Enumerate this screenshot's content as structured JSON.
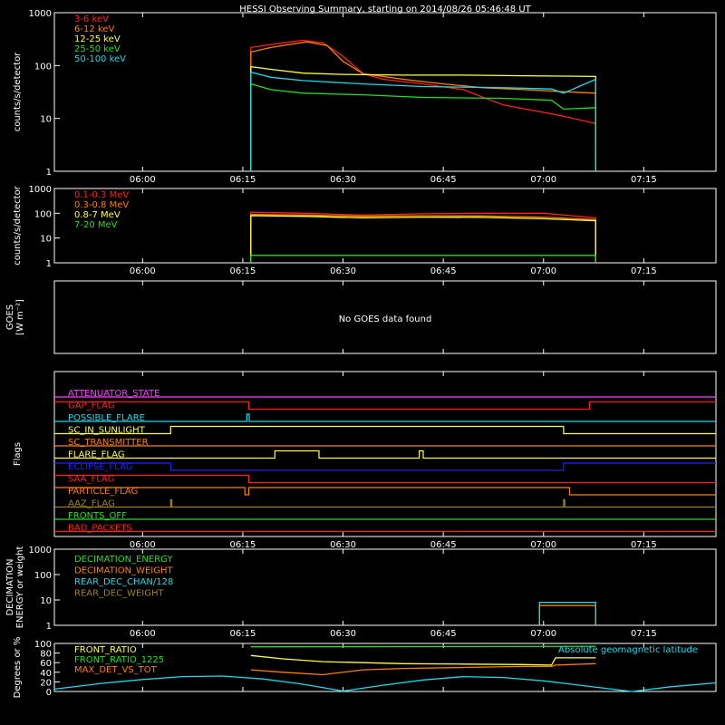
{
  "title": "HESSI Observing Summary, starting on 2014/08/26 05:46:48 UT",
  "time_ticks": [
    "06:00",
    "06:15",
    "06:30",
    "06:45",
    "07:00",
    "07:15"
  ],
  "colors": {
    "red": "#ff2020",
    "orange": "#ff7f00",
    "yellow": "#ffff40",
    "green": "#20e020",
    "cyan": "#20d8e8",
    "blue": "#2020ff",
    "magenta": "#ff40ff",
    "olive": "#a08020",
    "white": "#ffffff"
  },
  "chart_data": [
    {
      "type": "line",
      "name": "counts",
      "ylabel": "counts/s/detector",
      "yscale": "log",
      "ylim": [
        1,
        1000
      ],
      "yticks": [
        "1",
        "10",
        "100",
        "1000"
      ],
      "series": [
        {
          "name": "3-6 keV",
          "color": "red",
          "points": [
            [
              6.27,
              220
            ],
            [
              6.32,
              250
            ],
            [
              6.37,
              280
            ],
            [
              6.4,
              300
            ],
            [
              6.45,
              270
            ],
            [
              6.5,
              150
            ],
            [
              6.55,
              70
            ],
            [
              6.6,
              55
            ],
            [
              6.7,
              45
            ],
            [
              6.8,
              35
            ],
            [
              6.85,
              25
            ],
            [
              6.9,
              18
            ],
            [
              7.0,
              13
            ],
            [
              7.05,
              11
            ],
            [
              7.1,
              9
            ],
            [
              7.13,
              8
            ]
          ]
        },
        {
          "name": "6-12 keV",
          "color": "orange",
          "points": [
            [
              6.27,
              180
            ],
            [
              6.32,
              220
            ],
            [
              6.38,
              260
            ],
            [
              6.41,
              280
            ],
            [
              6.46,
              240
            ],
            [
              6.5,
              120
            ],
            [
              6.55,
              70
            ],
            [
              6.65,
              55
            ],
            [
              6.75,
              45
            ],
            [
              6.85,
              38
            ],
            [
              6.95,
              35
            ],
            [
              7.05,
              32
            ],
            [
              7.13,
              30
            ]
          ]
        },
        {
          "name": "12-25 keV",
          "color": "yellow",
          "points": [
            [
              6.27,
              95
            ],
            [
              6.32,
              85
            ],
            [
              6.4,
              72
            ],
            [
              6.5,
              68
            ],
            [
              6.65,
              66
            ],
            [
              6.8,
              66
            ],
            [
              6.95,
              64
            ],
            [
              7.05,
              63
            ],
            [
              7.13,
              62
            ]
          ]
        },
        {
          "name": "25-50 keV",
          "color": "green",
          "points": [
            [
              6.27,
              45
            ],
            [
              6.32,
              35
            ],
            [
              6.4,
              30
            ],
            [
              6.55,
              28
            ],
            [
              6.7,
              25
            ],
            [
              6.9,
              24
            ],
            [
              7.02,
              22
            ],
            [
              7.05,
              15
            ],
            [
              7.13,
              16
            ]
          ]
        },
        {
          "name": "50-100 keV",
          "color": "cyan",
          "points": [
            [
              6.27,
              75
            ],
            [
              6.32,
              60
            ],
            [
              6.4,
              52
            ],
            [
              6.55,
              45
            ],
            [
              6.7,
              40
            ],
            [
              6.9,
              38
            ],
            [
              7.02,
              36
            ],
            [
              7.05,
              30
            ],
            [
              7.13,
              55
            ]
          ]
        }
      ]
    },
    {
      "type": "line",
      "name": "counts-high",
      "ylabel": "counts/s/detector",
      "yscale": "log",
      "ylim": [
        1,
        1000
      ],
      "yticks": [
        "1",
        "10",
        "100",
        "1000"
      ],
      "series": [
        {
          "name": "0.1-0.3 MeV",
          "color": "red",
          "points": [
            [
              6.27,
              110
            ],
            [
              6.4,
              100
            ],
            [
              6.55,
              85
            ],
            [
              6.7,
              95
            ],
            [
              6.85,
              100
            ],
            [
              7.0,
              100
            ],
            [
              7.13,
              65
            ]
          ]
        },
        {
          "name": "0.3-0.8 MeV",
          "color": "orange",
          "points": [
            [
              6.27,
              90
            ],
            [
              6.4,
              85
            ],
            [
              6.55,
              75
            ],
            [
              6.7,
              80
            ],
            [
              6.85,
              78
            ],
            [
              7.0,
              70
            ],
            [
              7.13,
              55
            ]
          ]
        },
        {
          "name": "0.8-7 MeV",
          "color": "yellow",
          "points": [
            [
              6.27,
              80
            ],
            [
              6.4,
              75
            ],
            [
              6.55,
              65
            ],
            [
              6.7,
              70
            ],
            [
              6.85,
              68
            ],
            [
              7.0,
              60
            ],
            [
              7.13,
              50
            ]
          ]
        },
        {
          "name": "7-20 MeV",
          "color": "green",
          "points": [
            [
              6.27,
              2
            ],
            [
              7.13,
              2
            ]
          ]
        }
      ]
    },
    {
      "type": "line",
      "name": "goes",
      "ylabel": "GOES",
      "ylabel2": "[W m⁻²]",
      "message": "No GOES data found",
      "series": []
    },
    {
      "type": "line",
      "name": "flags",
      "ylabel": "Flags",
      "series": [
        {
          "name": "ATTENUATOR_STATE",
          "color": "magenta",
          "segments": [
            [
              5.78,
              7.43,
              0
            ]
          ]
        },
        {
          "name": "GAP_FLAG",
          "color": "red",
          "segments": [
            [
              5.78,
              6.265,
              1
            ],
            [
              6.265,
              7.115,
              0
            ],
            [
              7.115,
              7.43,
              1
            ]
          ]
        },
        {
          "name": "POSSIBLE_FLARE",
          "color": "cyan",
          "segments": [
            [
              5.78,
              6.26,
              0
            ],
            [
              6.26,
              6.266,
              1
            ],
            [
              6.266,
              7.43,
              0
            ]
          ]
        },
        {
          "name": "SC_IN_SUNLIGHT",
          "color": "yellow",
          "segments": [
            [
              5.78,
              6.07,
              0
            ],
            [
              6.07,
              7.05,
              1
            ],
            [
              7.05,
              7.43,
              0
            ]
          ]
        },
        {
          "name": "SC_TRANSMITTER",
          "color": "orange",
          "segments": [
            [
              5.78,
              7.43,
              0
            ]
          ]
        },
        {
          "name": "FLARE_FLAG",
          "color": "yellow",
          "segments": [
            [
              5.78,
              6.33,
              0
            ],
            [
              6.33,
              6.44,
              1
            ],
            [
              6.44,
              6.69,
              0
            ],
            [
              6.69,
              6.7,
              1
            ],
            [
              6.7,
              7.43,
              0
            ]
          ]
        },
        {
          "name": "ECLIPSE_FLAG",
          "color": "blue",
          "segments": [
            [
              5.78,
              6.07,
              1
            ],
            [
              6.07,
              7.05,
              0
            ],
            [
              7.05,
              7.43,
              1
            ]
          ]
        },
        {
          "name": "SAA_FLAG",
          "color": "red",
          "segments": [
            [
              5.78,
              6.265,
              1
            ],
            [
              6.265,
              7.43,
              0
            ]
          ]
        },
        {
          "name": "PARTICLE_FLAG",
          "color": "orange",
          "segments": [
            [
              5.78,
              6.255,
              1
            ],
            [
              6.255,
              6.265,
              0
            ],
            [
              6.265,
              7.065,
              1
            ],
            [
              7.065,
              7.43,
              0
            ]
          ]
        },
        {
          "name": "AAZ_FLAG",
          "color": "olive",
          "segments": [
            [
              5.78,
              6.07,
              0
            ],
            [
              6.07,
              6.073,
              1
            ],
            [
              6.073,
              7.05,
              0
            ],
            [
              7.05,
              7.053,
              1
            ],
            [
              7.053,
              7.43,
              0
            ]
          ]
        },
        {
          "name": "FRONTS_OFF",
          "color": "green",
          "segments": [
            [
              5.78,
              7.43,
              0
            ]
          ]
        },
        {
          "name": "BAD_PACKETS",
          "color": "red",
          "segments": [
            [
              5.78,
              7.43,
              0
            ]
          ]
        }
      ]
    },
    {
      "type": "line",
      "name": "decimation",
      "ylabel": "DECIMATION",
      "ylabel2": "ENERGY or weight",
      "yscale": "log",
      "ylim": [
        1,
        1000
      ],
      "yticks": [
        "1",
        "10",
        "100",
        "1000"
      ],
      "series": [
        {
          "name": "DECIMATION_ENERGY",
          "color": "green",
          "points": []
        },
        {
          "name": "DECIMATION_WEIGHT",
          "color": "orange",
          "points": [
            [
              6.99,
              1
            ],
            [
              6.99,
              6
            ],
            [
              7.13,
              6
            ],
            [
              7.13,
              1
            ]
          ]
        },
        {
          "name": "REAR_DEC_CHAN/128",
          "color": "cyan",
          "points": [
            [
              6.99,
              1
            ],
            [
              6.99,
              8
            ],
            [
              7.13,
              8
            ],
            [
              7.13,
              1
            ]
          ]
        },
        {
          "name": "REAR_DEC_WEIGHT",
          "color": "olive",
          "points": []
        }
      ]
    },
    {
      "type": "line",
      "name": "ratios",
      "ylabel": "Degrees or %",
      "ylim": [
        0,
        100
      ],
      "yticks": [
        "0",
        "20",
        "40",
        "60",
        "80",
        "100"
      ],
      "annotation": "Absolute geomagnetic latitude",
      "series": [
        {
          "name": "FRONT_RATIO",
          "color": "yellow",
          "points": [
            [
              6.27,
              75
            ],
            [
              6.35,
              68
            ],
            [
              6.45,
              62
            ],
            [
              6.55,
              60
            ],
            [
              6.65,
              58
            ],
            [
              6.8,
              57
            ],
            [
              6.95,
              56
            ],
            [
              7.02,
              55
            ],
            [
              7.03,
              70
            ],
            [
              7.13,
              70
            ]
          ]
        },
        {
          "name": "FRONT_RATIO_1225",
          "color": "green",
          "points": [
            [
              6.27,
              93
            ],
            [
              7.13,
              94
            ]
          ]
        },
        {
          "name": "MAX_DET_VS_TOT",
          "color": "orange",
          "points": [
            [
              6.27,
              45
            ],
            [
              6.35,
              40
            ],
            [
              6.45,
              35
            ],
            [
              6.55,
              45
            ],
            [
              6.65,
              48
            ],
            [
              6.8,
              50
            ],
            [
              6.95,
              52
            ],
            [
              7.02,
              52
            ],
            [
              7.03,
              55
            ],
            [
              7.13,
              58
            ]
          ]
        },
        {
          "name": "geomagnetic latitude",
          "color": "cyan",
          "points": [
            [
              5.78,
              5
            ],
            [
              5.9,
              17
            ],
            [
              6.0,
              25
            ],
            [
              6.1,
              31
            ],
            [
              6.2,
              32
            ],
            [
              6.3,
              26
            ],
            [
              6.4,
              15
            ],
            [
              6.5,
              1
            ],
            [
              6.6,
              13
            ],
            [
              6.7,
              24
            ],
            [
              6.8,
              31
            ],
            [
              6.9,
              29
            ],
            [
              7.0,
              22
            ],
            [
              7.1,
              12
            ],
            [
              7.22,
              0
            ],
            [
              7.32,
              10
            ],
            [
              7.43,
              18
            ]
          ]
        }
      ]
    }
  ]
}
